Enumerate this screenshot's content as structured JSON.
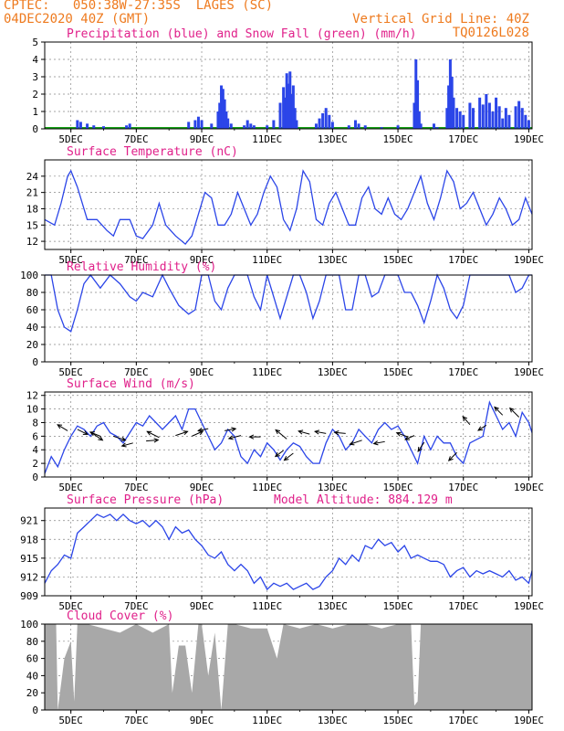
{
  "header": {
    "left_line1": "CPTEC:   050:38W-27:35S  LAGES (SC)",
    "left_line2": "04DEC2020 40Z (GMT)",
    "right_line1": "Vertical Grid Line: 40Z",
    "right_line2": "TQ0126L028"
  },
  "colors": {
    "header_orange": "#ee7a1e",
    "title_magenta": "#e0208a",
    "line_blue": "#2b45e8",
    "snow_green": "#17a317",
    "cloud_gray": "#a8a8a8",
    "axis_black": "#000000"
  },
  "x_axis": {
    "tick_labels": [
      "5DEC",
      "7DEC",
      "9DEC",
      "11DEC",
      "13DEC",
      "15DEC",
      "17DEC",
      "19DEC"
    ],
    "label_days": [
      5,
      7,
      9,
      11,
      13,
      15,
      17,
      19
    ],
    "range_days": [
      4.2,
      19.1
    ]
  },
  "chart_data": [
    {
      "id": "precip",
      "type": "bar",
      "title": "Precipitation (blue) and Snow Fall (green) (mm/h)",
      "ylim": [
        0,
        5
      ],
      "yticks": [
        0,
        1,
        2,
        3,
        4,
        5
      ],
      "ytick_labels": [
        "0",
        "1",
        "2",
        "3",
        "4",
        "5"
      ],
      "bars": [
        [
          5.2,
          0.5
        ],
        [
          5.3,
          0.4
        ],
        [
          5.5,
          0.3
        ],
        [
          5.7,
          0.2
        ],
        [
          6.0,
          0.15
        ],
        [
          6.7,
          0.2
        ],
        [
          6.8,
          0.3
        ],
        [
          8.6,
          0.4
        ],
        [
          8.8,
          0.5
        ],
        [
          8.9,
          0.7
        ],
        [
          9.0,
          0.5
        ],
        [
          9.3,
          0.3
        ],
        [
          9.5,
          1.0
        ],
        [
          9.55,
          1.5
        ],
        [
          9.6,
          2.5
        ],
        [
          9.65,
          2.3
        ],
        [
          9.7,
          1.7
        ],
        [
          9.75,
          1.0
        ],
        [
          9.8,
          0.6
        ],
        [
          9.9,
          0.3
        ],
        [
          10.3,
          0.2
        ],
        [
          10.4,
          0.5
        ],
        [
          10.5,
          0.3
        ],
        [
          10.6,
          0.2
        ],
        [
          11.0,
          0.2
        ],
        [
          11.2,
          0.5
        ],
        [
          11.4,
          1.5
        ],
        [
          11.5,
          2.4
        ],
        [
          11.55,
          1.8
        ],
        [
          11.6,
          3.2
        ],
        [
          11.65,
          2.6
        ],
        [
          11.7,
          3.3
        ],
        [
          11.75,
          2.0
        ],
        [
          11.8,
          2.5
        ],
        [
          11.85,
          1.2
        ],
        [
          11.9,
          0.5
        ],
        [
          12.5,
          0.3
        ],
        [
          12.6,
          0.6
        ],
        [
          12.7,
          0.9
        ],
        [
          12.8,
          1.2
        ],
        [
          12.9,
          0.8
        ],
        [
          13.0,
          0.4
        ],
        [
          13.5,
          0.2
        ],
        [
          13.7,
          0.5
        ],
        [
          13.8,
          0.3
        ],
        [
          14.0,
          0.2
        ],
        [
          14.5,
          0.1
        ],
        [
          15.0,
          0.2
        ],
        [
          15.5,
          1.5
        ],
        [
          15.55,
          4.0
        ],
        [
          15.6,
          2.8
        ],
        [
          15.65,
          1.0
        ],
        [
          15.7,
          0.3
        ],
        [
          16.1,
          0.3
        ],
        [
          16.2,
          0.1
        ],
        [
          16.5,
          1.2
        ],
        [
          16.55,
          2.5
        ],
        [
          16.6,
          4.0
        ],
        [
          16.65,
          3.0
        ],
        [
          16.7,
          1.8
        ],
        [
          16.8,
          1.2
        ],
        [
          16.9,
          1.0
        ],
        [
          17.0,
          0.8
        ],
        [
          17.2,
          1.5
        ],
        [
          17.3,
          1.2
        ],
        [
          17.5,
          1.8
        ],
        [
          17.6,
          1.4
        ],
        [
          17.7,
          2.0
        ],
        [
          17.8,
          1.5
        ],
        [
          17.9,
          1.0
        ],
        [
          18.0,
          1.8
        ],
        [
          18.1,
          1.3
        ],
        [
          18.2,
          0.6
        ],
        [
          18.3,
          1.2
        ],
        [
          18.4,
          0.8
        ],
        [
          18.6,
          1.3
        ],
        [
          18.7,
          1.6
        ],
        [
          18.8,
          1.2
        ],
        [
          18.9,
          0.8
        ],
        [
          19.0,
          0.5
        ]
      ],
      "snow_note": "none"
    },
    {
      "id": "temperature",
      "type": "line",
      "title": "Surface Temperature (nC)",
      "ylim": [
        10.5,
        27
      ],
      "yticks": [
        12,
        15,
        18,
        21,
        24
      ],
      "ytick_labels": [
        "12",
        "15",
        "18",
        "21",
        "24"
      ],
      "x": [
        4.2,
        4.5,
        4.7,
        4.9,
        5.0,
        5.2,
        5.5,
        5.8,
        6.1,
        6.3,
        6.5,
        6.8,
        7.0,
        7.2,
        7.5,
        7.7,
        7.9,
        8.2,
        8.5,
        8.7,
        8.9,
        9.1,
        9.3,
        9.5,
        9.7,
        9.9,
        10.1,
        10.3,
        10.5,
        10.7,
        10.9,
        11.1,
        11.3,
        11.5,
        11.7,
        11.9,
        12.1,
        12.3,
        12.5,
        12.7,
        12.9,
        13.1,
        13.3,
        13.5,
        13.7,
        13.9,
        14.1,
        14.3,
        14.5,
        14.7,
        14.9,
        15.1,
        15.3,
        15.5,
        15.7,
        15.9,
        16.1,
        16.3,
        16.5,
        16.7,
        16.9,
        17.1,
        17.3,
        17.5,
        17.7,
        17.9,
        18.1,
        18.3,
        18.5,
        18.7,
        18.9,
        19.1
      ],
      "y": [
        16,
        15,
        19,
        24,
        25,
        22,
        16,
        16,
        14,
        13,
        16,
        16,
        13,
        12.5,
        15,
        19,
        15,
        13,
        11.5,
        13,
        17,
        21,
        20,
        15,
        15,
        17,
        21,
        18,
        15,
        17,
        21,
        24,
        22,
        16,
        14,
        18,
        25,
        23,
        16,
        15,
        19,
        21,
        18,
        15,
        15,
        20,
        22,
        18,
        17,
        20,
        17,
        16,
        18,
        21,
        24,
        19,
        16,
        20,
        25,
        23,
        18,
        19,
        21,
        18,
        15,
        17,
        20,
        18,
        15,
        16,
        20,
        17
      ]
    },
    {
      "id": "humidity",
      "type": "line",
      "title": "Relative Humidity (%)",
      "ylim": [
        0,
        100
      ],
      "yticks": [
        0,
        20,
        40,
        60,
        80,
        100
      ],
      "ytick_labels": [
        "0",
        "20",
        "40",
        "60",
        "80",
        "100"
      ],
      "x": [
        4.2,
        4.4,
        4.6,
        4.8,
        5.0,
        5.2,
        5.4,
        5.6,
        5.9,
        6.2,
        6.5,
        6.8,
        7.0,
        7.2,
        7.5,
        7.8,
        8.0,
        8.3,
        8.6,
        8.8,
        9.0,
        9.2,
        9.4,
        9.6,
        9.8,
        10.0,
        10.2,
        10.4,
        10.6,
        10.8,
        11.0,
        11.2,
        11.4,
        11.6,
        11.8,
        12.0,
        12.2,
        12.4,
        12.6,
        12.8,
        13.0,
        13.2,
        13.4,
        13.6,
        13.8,
        14.0,
        14.2,
        14.4,
        14.6,
        14.8,
        15.0,
        15.2,
        15.4,
        15.6,
        15.8,
        16.0,
        16.2,
        16.4,
        16.6,
        16.8,
        17.0,
        17.2,
        17.4,
        17.6,
        17.8,
        18.0,
        18.2,
        18.4,
        18.6,
        18.8,
        19.0,
        19.1
      ],
      "y": [
        100,
        100,
        60,
        40,
        35,
        60,
        90,
        100,
        85,
        100,
        90,
        75,
        70,
        80,
        75,
        100,
        85,
        65,
        55,
        60,
        100,
        100,
        70,
        60,
        85,
        100,
        100,
        100,
        75,
        60,
        100,
        75,
        50,
        75,
        100,
        100,
        80,
        50,
        70,
        100,
        100,
        100,
        60,
        60,
        100,
        100,
        75,
        80,
        100,
        100,
        100,
        80,
        80,
        65,
        45,
        70,
        100,
        85,
        60,
        50,
        65,
        100,
        100,
        100,
        100,
        100,
        100,
        100,
        80,
        85,
        100,
        100
      ]
    },
    {
      "id": "wind",
      "type": "line",
      "title": "Surface Wind (m/s)",
      "ylim": [
        0,
        12.5
      ],
      "yticks": [
        0,
        2,
        4,
        6,
        8,
        10,
        12
      ],
      "ytick_labels": [
        "0",
        "2",
        "4",
        "6",
        "8",
        "10",
        "12"
      ],
      "x": [
        4.2,
        4.4,
        4.6,
        4.8,
        5.0,
        5.2,
        5.4,
        5.6,
        5.8,
        6.0,
        6.2,
        6.4,
        6.6,
        6.8,
        7.0,
        7.2,
        7.4,
        7.6,
        7.8,
        8.0,
        8.2,
        8.4,
        8.6,
        8.8,
        9.0,
        9.2,
        9.4,
        9.6,
        9.8,
        10.0,
        10.2,
        10.4,
        10.6,
        10.8,
        11.0,
        11.2,
        11.4,
        11.6,
        11.8,
        12.0,
        12.2,
        12.4,
        12.6,
        12.8,
        13.0,
        13.2,
        13.4,
        13.6,
        13.8,
        14.0,
        14.2,
        14.4,
        14.6,
        14.8,
        15.0,
        15.2,
        15.4,
        15.6,
        15.8,
        16.0,
        16.2,
        16.4,
        16.6,
        16.8,
        17.0,
        17.2,
        17.4,
        17.6,
        17.8,
        18.0,
        18.2,
        18.4,
        18.6,
        18.8,
        19.0,
        19.1
      ],
      "y": [
        0.5,
        3,
        1.5,
        4,
        6,
        7.5,
        7,
        6,
        7.5,
        8,
        6.5,
        6,
        5,
        6.5,
        8,
        7.5,
        9,
        8,
        7,
        8,
        9,
        7,
        10,
        10,
        8,
        6,
        4,
        5,
        7,
        6,
        3,
        2,
        4,
        3,
        5,
        4,
        2.5,
        4,
        5,
        4.5,
        3,
        2,
        2,
        5,
        7,
        6,
        4,
        5,
        7,
        6,
        5,
        7,
        8,
        7,
        7.5,
        6,
        4,
        2,
        6,
        4,
        6,
        5,
        5,
        3,
        2,
        5,
        5.5,
        6,
        11,
        9,
        7,
        8,
        6,
        9.5,
        8,
        6.5
      ],
      "arrows": [
        [
          4.9,
          6.8,
          -1.0,
          0.6
        ],
        [
          5.2,
          7.0,
          1.0,
          -0.5
        ],
        [
          5.6,
          6.6,
          1.2,
          -0.8
        ],
        [
          5.9,
          6.0,
          -1.0,
          0.4
        ],
        [
          6.3,
          6.0,
          1.2,
          -0.4
        ],
        [
          6.9,
          5.0,
          -1.1,
          -0.3
        ],
        [
          7.3,
          5.3,
          1.2,
          0.1
        ],
        [
          7.7,
          5.8,
          -1.2,
          0.6
        ],
        [
          8.2,
          6.1,
          1.2,
          0.4
        ],
        [
          8.7,
          6.0,
          1.1,
          0.5
        ],
        [
          9.2,
          7.1,
          -1.0,
          -0.2
        ],
        [
          9.7,
          6.8,
          1.1,
          0.2
        ],
        [
          10.2,
          6.1,
          -1.2,
          -0.3
        ],
        [
          10.8,
          5.9,
          -1.1,
          0.0
        ],
        [
          11.6,
          5.6,
          -1.1,
          0.9
        ],
        [
          11.8,
          3.5,
          -0.9,
          -0.7
        ],
        [
          11.5,
          3.9,
          -0.8,
          -0.6
        ],
        [
          12.3,
          6.3,
          -1.1,
          0.3
        ],
        [
          12.8,
          6.4,
          -1.1,
          0.2
        ],
        [
          13.4,
          6.4,
          -1.1,
          0.1
        ],
        [
          13.9,
          5.4,
          -1.2,
          -0.4
        ],
        [
          14.6,
          5.2,
          -1.1,
          -0.2
        ],
        [
          15.3,
          5.9,
          -1.1,
          0.4
        ],
        [
          15.8,
          5.1,
          -0.6,
          -0.9
        ],
        [
          15.5,
          6.1,
          -0.9,
          -0.4
        ],
        [
          16.8,
          3.6,
          -0.8,
          -0.8
        ],
        [
          17.2,
          7.7,
          -0.7,
          0.8
        ],
        [
          17.7,
          7.6,
          -0.8,
          -0.5
        ],
        [
          18.2,
          9.1,
          -0.8,
          0.8
        ],
        [
          18.7,
          8.8,
          -0.9,
          0.9
        ]
      ]
    },
    {
      "id": "pressure",
      "type": "line",
      "title": "Surface Pressure (hPa)",
      "subtitle": "Model Altitude: 884.129  m",
      "ylim": [
        909,
        923
      ],
      "yticks": [
        909,
        912,
        915,
        918,
        921
      ],
      "ytick_labels": [
        "909",
        "912",
        "915",
        "918",
        "921"
      ],
      "x": [
        4.2,
        4.4,
        4.6,
        4.8,
        5.0,
        5.2,
        5.4,
        5.6,
        5.8,
        6.0,
        6.2,
        6.4,
        6.6,
        6.8,
        7.0,
        7.2,
        7.4,
        7.6,
        7.8,
        8.0,
        8.2,
        8.4,
        8.6,
        8.8,
        9.0,
        9.2,
        9.4,
        9.6,
        9.8,
        10.0,
        10.2,
        10.4,
        10.6,
        10.8,
        11.0,
        11.2,
        11.4,
        11.6,
        11.8,
        12.0,
        12.2,
        12.4,
        12.6,
        12.8,
        13.0,
        13.2,
        13.4,
        13.6,
        13.8,
        14.0,
        14.2,
        14.4,
        14.6,
        14.8,
        15.0,
        15.2,
        15.4,
        15.6,
        15.8,
        16.0,
        16.2,
        16.4,
        16.6,
        16.8,
        17.0,
        17.2,
        17.4,
        17.6,
        17.8,
        18.0,
        18.2,
        18.4,
        18.6,
        18.8,
        19.0,
        19.1
      ],
      "y": [
        911,
        913,
        914,
        915.5,
        915,
        919,
        920,
        921,
        922,
        921.5,
        922,
        921,
        922,
        921,
        920.5,
        921,
        920,
        921,
        920,
        918,
        920,
        919,
        919.5,
        918,
        917,
        915.5,
        915,
        916,
        914,
        913,
        914,
        913,
        911,
        912,
        910,
        911,
        910.5,
        911,
        910,
        910.5,
        911,
        910,
        910.5,
        912,
        913,
        915,
        914,
        915.5,
        914.5,
        917,
        916.5,
        918,
        917,
        917.5,
        916,
        917,
        915,
        915.5,
        915,
        914.5,
        914.5,
        914,
        912,
        913,
        913.5,
        912,
        913,
        912.5,
        913,
        912.5,
        912,
        913,
        911.5,
        912,
        911,
        913
      ],
      "y_right_note": "pressure line"
    },
    {
      "id": "cloud",
      "type": "area",
      "title": "Cloud Cover (%)",
      "ylim": [
        0,
        100
      ],
      "yticks": [
        0,
        20,
        40,
        60,
        80,
        100
      ],
      "ytick_labels": [
        "0",
        "20",
        "40",
        "60",
        "80",
        "100"
      ],
      "x": [
        4.2,
        4.4,
        4.55,
        4.6,
        4.8,
        5.0,
        5.1,
        5.2,
        5.5,
        6.0,
        6.5,
        7.0,
        7.5,
        8.0,
        8.1,
        8.3,
        8.5,
        8.7,
        8.9,
        9.0,
        9.2,
        9.4,
        9.6,
        9.8,
        10.0,
        10.5,
        11.0,
        11.3,
        11.5,
        12.0,
        12.5,
        13.0,
        13.5,
        14.0,
        14.5,
        15.0,
        15.4,
        15.5,
        15.6,
        15.7,
        16.0,
        16.5,
        17.0,
        17.5,
        18.0,
        18.5,
        19.0,
        19.1
      ],
      "y": [
        100,
        100,
        100,
        0,
        60,
        80,
        10,
        100,
        100,
        95,
        90,
        100,
        90,
        100,
        20,
        75,
        75,
        20,
        100,
        100,
        40,
        90,
        0,
        100,
        100,
        95,
        95,
        60,
        100,
        95,
        100,
        95,
        100,
        100,
        95,
        100,
        100,
        5,
        10,
        100,
        100,
        100,
        100,
        100,
        100,
        100,
        100,
        100
      ]
    }
  ]
}
